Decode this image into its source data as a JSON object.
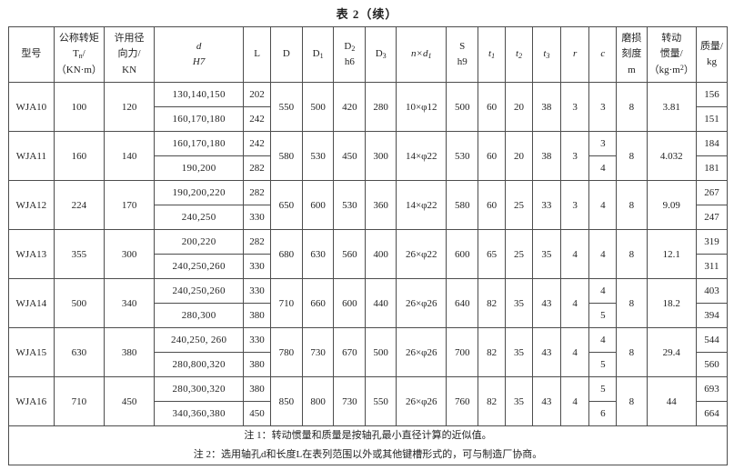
{
  "title": "表 2（续）",
  "table": {
    "columns": [
      {
        "key": "model",
        "label": "型号",
        "italic": false,
        "width": 6.3
      },
      {
        "key": "torque",
        "label": "公称转矩\nT_{n}/\n（KN·m）",
        "italic": false,
        "width": 7.0
      },
      {
        "key": "force",
        "label": "许用径\n向力/\nKN",
        "italic": false,
        "width": 7.0
      },
      {
        "key": "d",
        "label": "d\nH7",
        "italic": true,
        "width": 12.4
      },
      {
        "key": "L",
        "label": "L",
        "italic": false,
        "width": 3.8
      },
      {
        "key": "D",
        "label": "D",
        "italic": false,
        "width": 4.4
      },
      {
        "key": "D1",
        "label": "D_{1}",
        "italic": false,
        "width": 4.4
      },
      {
        "key": "D2",
        "label": "D_{2}\nh6",
        "italic": false,
        "width": 4.4
      },
      {
        "key": "D3",
        "label": "D_{3}",
        "italic": false,
        "width": 4.3
      },
      {
        "key": "n_d1",
        "label": "n×d_{1}",
        "italic": true,
        "width": 7.0
      },
      {
        "key": "S",
        "label": "S\nh9",
        "italic": false,
        "width": 4.4
      },
      {
        "key": "t1",
        "label": "t_{1}",
        "italic": true,
        "width": 3.8
      },
      {
        "key": "t2",
        "label": "t_{2}",
        "italic": true,
        "width": 3.8
      },
      {
        "key": "t3",
        "label": "t_{3}",
        "italic": true,
        "width": 3.9
      },
      {
        "key": "r",
        "label": "r",
        "italic": true,
        "width": 4.0
      },
      {
        "key": "c",
        "label": "c",
        "italic": true,
        "width": 3.8
      },
      {
        "key": "wear",
        "label": "磨损\n刻度\nm",
        "italic": false,
        "width": 4.2
      },
      {
        "key": "inertia",
        "label": "转动\n惯量/\n（kg·m^{2}）",
        "italic": false,
        "width": 6.9
      },
      {
        "key": "mass",
        "label": "质量/\nkg",
        "italic": false,
        "width": 4.3
      }
    ],
    "rows": [
      {
        "model": "WJA10",
        "torque": "100",
        "force": "120",
        "d": [
          "130,140,150",
          "160,170,180"
        ],
        "L": [
          "202",
          "242"
        ],
        "D": "550",
        "D1": "500",
        "D2": "420",
        "D3": "280",
        "n_d1": "10×φ12",
        "S": "500",
        "t1": "60",
        "t2": "20",
        "t3": "38",
        "r": "3",
        "c": [
          "3"
        ],
        "wear": "8",
        "inertia": "3.81",
        "mass": [
          "156",
          "151"
        ]
      },
      {
        "model": "WJA11",
        "torque": "160",
        "force": "140",
        "d": [
          "160,170,180",
          "190,200"
        ],
        "L": [
          "242",
          "282"
        ],
        "D": "580",
        "D1": "530",
        "D2": "450",
        "D3": "300",
        "n_d1": "14×φ22",
        "S": "530",
        "t1": "60",
        "t2": "20",
        "t3": "38",
        "r": "3",
        "c": [
          "3",
          "4"
        ],
        "wear": "8",
        "inertia": "4.032",
        "mass": [
          "184",
          "181"
        ]
      },
      {
        "model": "WJA12",
        "torque": "224",
        "force": "170",
        "d": [
          "190,200,220",
          "240,250"
        ],
        "L": [
          "282",
          "330"
        ],
        "D": "650",
        "D1": "600",
        "D2": "530",
        "D3": "360",
        "n_d1": "14×φ22",
        "S": "580",
        "t1": "60",
        "t2": "25",
        "t3": "33",
        "r": "3",
        "c": [
          "4"
        ],
        "wear": "8",
        "inertia": "9.09",
        "mass": [
          "267",
          "247"
        ]
      },
      {
        "model": "WJA13",
        "torque": "355",
        "force": "300",
        "d": [
          "200,220",
          "240,250,260"
        ],
        "L": [
          "282",
          "330"
        ],
        "D": "680",
        "D1": "630",
        "D2": "560",
        "D3": "400",
        "n_d1": "26×φ22",
        "S": "600",
        "t1": "65",
        "t2": "25",
        "t3": "35",
        "r": "4",
        "c": [
          "4"
        ],
        "wear": "8",
        "inertia": "12.1",
        "mass": [
          "319",
          "311"
        ]
      },
      {
        "model": "WJA14",
        "torque": "500",
        "force": "340",
        "d": [
          "240,250,260",
          "280,300"
        ],
        "L": [
          "330",
          "380"
        ],
        "D": "710",
        "D1": "660",
        "D2": "600",
        "D3": "440",
        "n_d1": "26×φ26",
        "S": "640",
        "t1": "82",
        "t2": "35",
        "t3": "43",
        "r": "4",
        "c": [
          "4",
          "5"
        ],
        "wear": "8",
        "inertia": "18.2",
        "mass": [
          "403",
          "394"
        ]
      },
      {
        "model": "WJA15",
        "torque": "630",
        "force": "380",
        "d": [
          "240,250, 260",
          "280,800,320"
        ],
        "L": [
          "330",
          "380"
        ],
        "D": "780",
        "D1": "730",
        "D2": "670",
        "D3": "500",
        "n_d1": "26×φ26",
        "S": "700",
        "t1": "82",
        "t2": "35",
        "t3": "43",
        "r": "4",
        "c": [
          "4",
          "5"
        ],
        "wear": "8",
        "inertia": "29.4",
        "mass": [
          "544",
          "560"
        ]
      },
      {
        "model": "WJA16",
        "torque": "710",
        "force": "450",
        "d": [
          "280,300,320",
          "340,360,380"
        ],
        "L": [
          "380",
          "450"
        ],
        "D": "850",
        "D1": "800",
        "D2": "730",
        "D3": "550",
        "n_d1": "26×φ26",
        "S": "760",
        "t1": "82",
        "t2": "35",
        "t3": "43",
        "r": "4",
        "c": [
          "5",
          "6"
        ],
        "wear": "8",
        "inertia": "44",
        "mass": [
          "693",
          "664"
        ]
      }
    ]
  },
  "notes": [
    "注 1：转动惯量和质量是按轴孔最小直径计算的近似值。",
    "注 2：选用轴孔d和长度L在表列范围以外或其他键槽形式的，可与制造厂协商。"
  ]
}
